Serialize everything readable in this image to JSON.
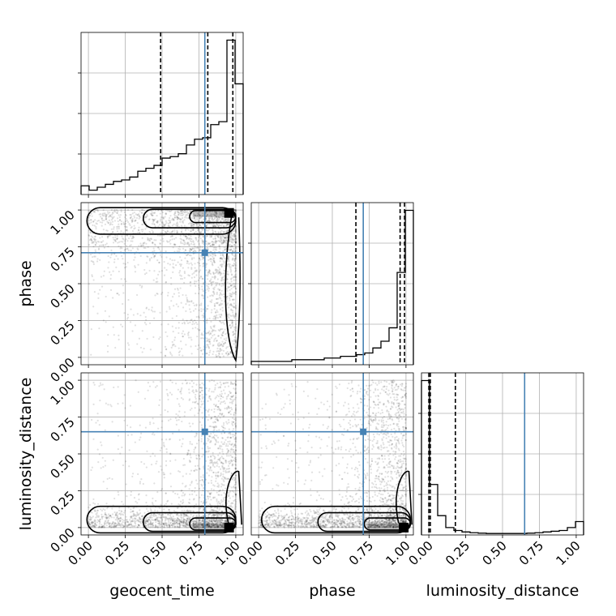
{
  "chart_data": {
    "type": "corner",
    "parameters": [
      "geocent_time",
      "phase",
      "luminosity_distance"
    ],
    "range": [
      -0.05,
      1.05
    ],
    "ticks": [
      0.0,
      0.25,
      0.5,
      0.75,
      1.0
    ],
    "tick_labels": [
      "0.00",
      "0.25",
      "0.50",
      "0.75",
      "1.00"
    ],
    "grid": true,
    "truths": {
      "geocent_time": 0.79,
      "phase": 0.71,
      "luminosity_distance": 0.65
    },
    "truth_color": "#4682b4",
    "quantiles": {
      "geocent_time": [
        0.49,
        0.81,
        0.98
      ],
      "phase": [
        0.66,
        0.96,
        0.99
      ],
      "luminosity_distance": [
        0.0,
        0.01,
        0.18
      ]
    },
    "histograms": {
      "geocent_time": {
        "bin_edges": [
          -0.05,
          0.005,
          0.06,
          0.115,
          0.17,
          0.225,
          0.28,
          0.335,
          0.39,
          0.445,
          0.5,
          0.555,
          0.61,
          0.665,
          0.72,
          0.775,
          0.83,
          0.885,
          0.94,
          0.995,
          1.05
        ],
        "counts": [
          0.06,
          0.03,
          0.05,
          0.07,
          0.09,
          0.1,
          0.12,
          0.16,
          0.18,
          0.2,
          0.25,
          0.26,
          0.28,
          0.34,
          0.38,
          0.39,
          0.48,
          0.5,
          1.06,
          0.76
        ]
      },
      "phase": {
        "bin_edges": [
          -0.05,
          0.005,
          0.06,
          0.115,
          0.17,
          0.225,
          0.28,
          0.335,
          0.39,
          0.445,
          0.5,
          0.555,
          0.61,
          0.665,
          0.72,
          0.775,
          0.83,
          0.885,
          0.94,
          0.995,
          1.05
        ],
        "counts": [
          0.02,
          0.02,
          0.02,
          0.02,
          0.02,
          0.03,
          0.03,
          0.03,
          0.03,
          0.04,
          0.04,
          0.05,
          0.05,
          0.06,
          0.07,
          0.1,
          0.14,
          0.22,
          0.55,
          0.92
        ]
      },
      "luminosity_distance": {
        "bin_edges": [
          -0.05,
          0.005,
          0.06,
          0.115,
          0.17,
          0.225,
          0.28,
          0.335,
          0.39,
          0.445,
          0.5,
          0.555,
          0.61,
          0.665,
          0.72,
          0.775,
          0.83,
          0.885,
          0.94,
          0.995,
          1.05
        ],
        "counts": [
          1.04,
          0.34,
          0.13,
          0.05,
          0.03,
          0.02,
          0.015,
          0.012,
          0.01,
          0.01,
          0.01,
          0.01,
          0.01,
          0.012,
          0.015,
          0.02,
          0.025,
          0.03,
          0.05,
          0.09
        ]
      }
    },
    "scatter_color": "#000000",
    "contour_color": "#000000"
  }
}
